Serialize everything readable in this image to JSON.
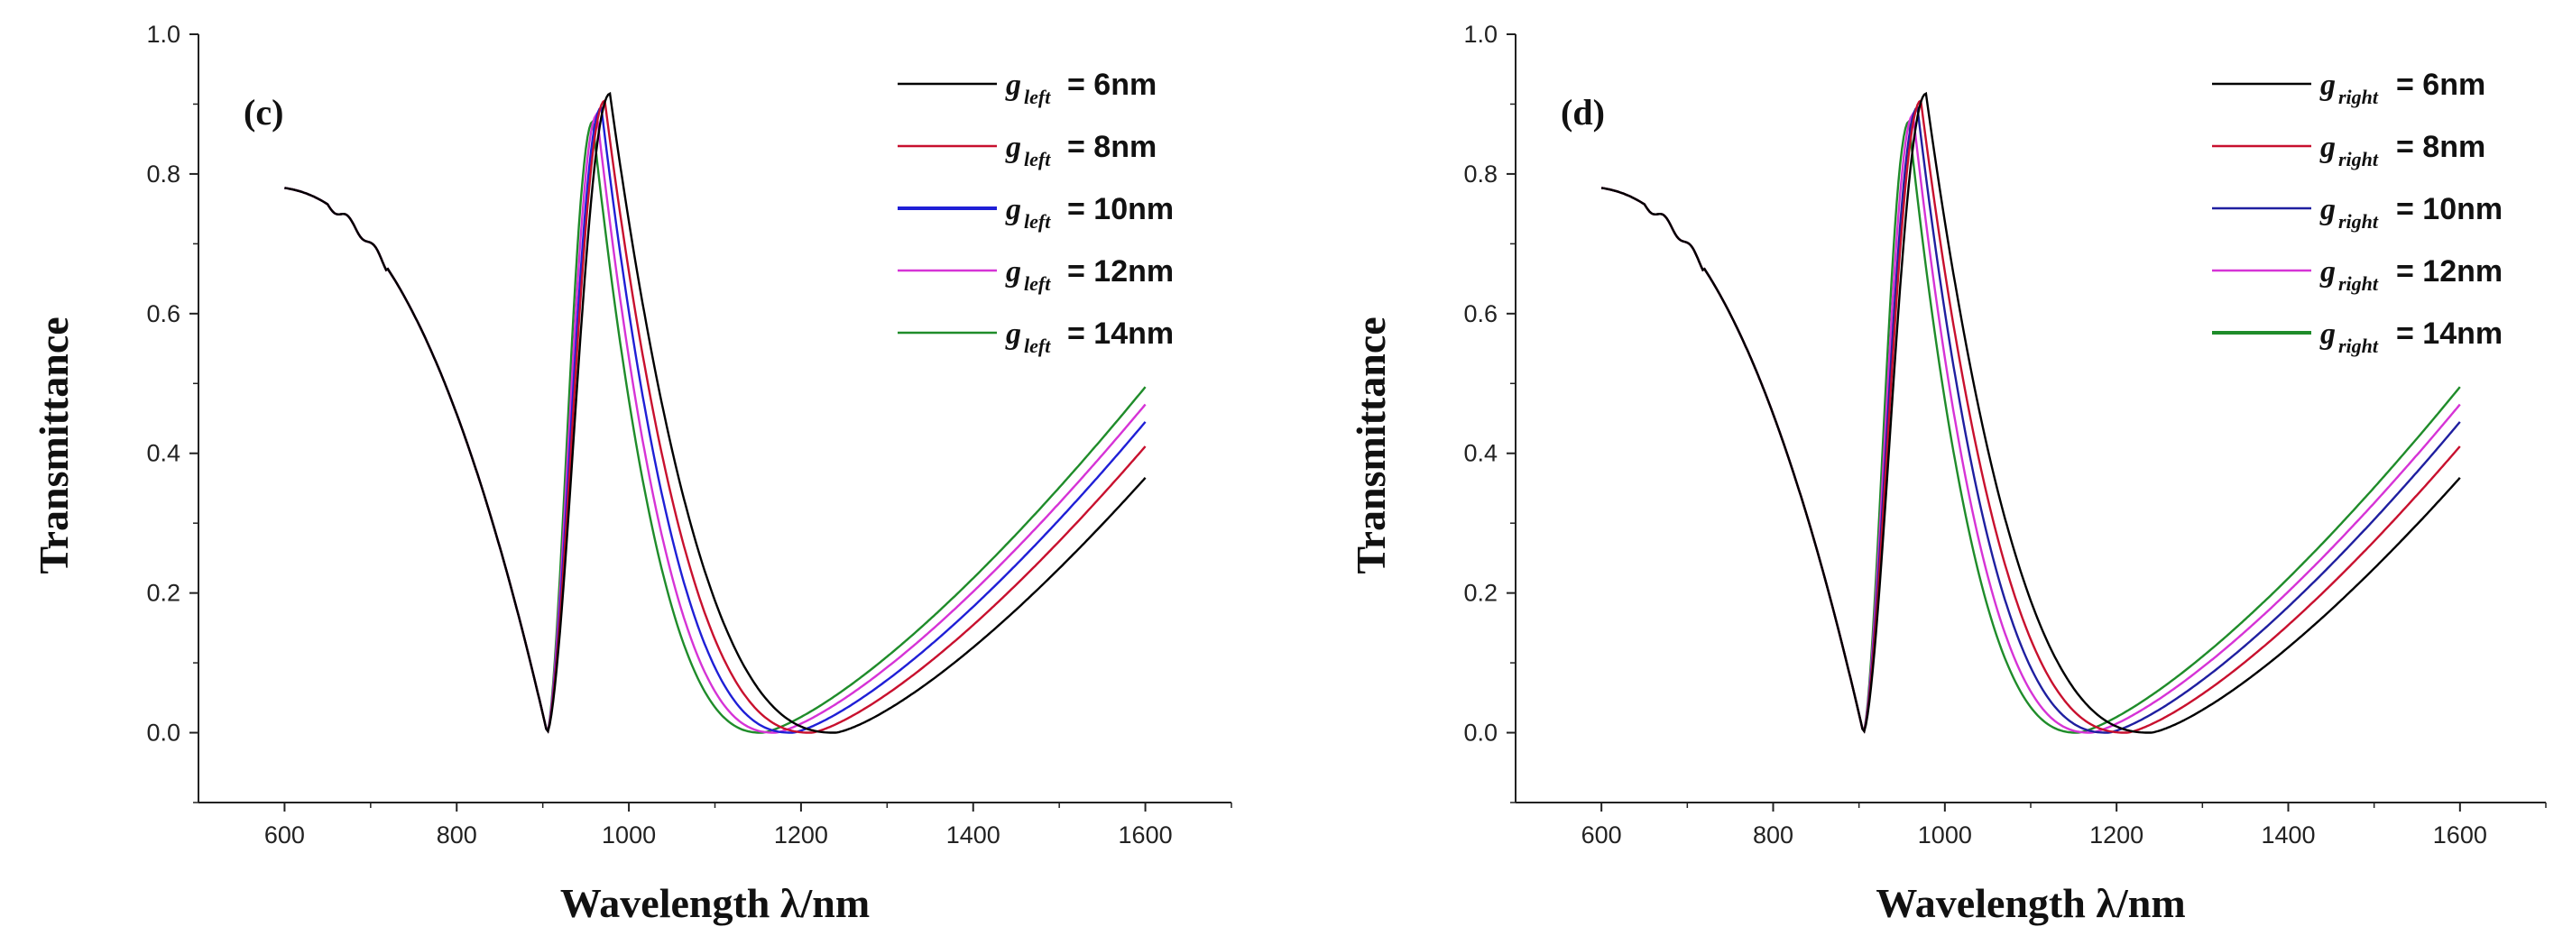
{
  "chart_data": [
    {
      "type": "line",
      "panel_label": "(c)",
      "xlabel": "Wavelength λ/nm",
      "ylabel": "Transmittance",
      "xlim": [
        500,
        1700
      ],
      "ylim": [
        -0.1,
        1.0
      ],
      "xticks": [
        "600",
        "800",
        "1000",
        "1200",
        "1400",
        "1600"
      ],
      "yticks": [
        "0.0",
        "0.2",
        "0.4",
        "0.6",
        "0.8",
        "1.0"
      ],
      "legend_position": "top-right",
      "series": [
        {
          "name": "g_left = 6nm",
          "label_main": "g",
          "label_sub": "left",
          "label_value": "= 6nm",
          "color": "#000000",
          "peak_x": 978,
          "peak_y": 0.915,
          "min_x": 1240,
          "end_y": 0.365
        },
        {
          "name": "g_left = 8nm",
          "label_main": "g",
          "label_sub": "left",
          "label_value": "= 8nm",
          "color": "#c8102e",
          "peak_x": 972,
          "peak_y": 0.905,
          "min_x": 1212,
          "end_y": 0.41
        },
        {
          "name": "g_left = 10nm",
          "label_main": "g",
          "label_sub": "left",
          "label_value": "= 10nm",
          "color": "#1f1fd6",
          "peak_x": 968,
          "peak_y": 0.895,
          "min_x": 1190,
          "end_y": 0.445
        },
        {
          "name": "g_left = 12nm",
          "label_main": "g",
          "label_sub": "left",
          "label_value": "= 12nm",
          "color": "#d633d6",
          "peak_x": 963,
          "peak_y": 0.885,
          "min_x": 1170,
          "end_y": 0.47
        },
        {
          "name": "g_left = 14nm",
          "label_main": "g",
          "label_sub": "left",
          "label_value": "= 14nm",
          "color": "#1f8c2a",
          "peak_x": 958,
          "peak_y": 0.875,
          "min_x": 1155,
          "end_y": 0.495
        }
      ]
    },
    {
      "type": "line",
      "panel_label": "(d)",
      "xlabel": "Wavelength λ/nm",
      "ylabel": "Transmittance",
      "xlim": [
        500,
        1700
      ],
      "ylim": [
        -0.1,
        1.0
      ],
      "xticks": [
        "600",
        "800",
        "1000",
        "1200",
        "1400",
        "1600"
      ],
      "yticks": [
        "0.0",
        "0.2",
        "0.4",
        "0.6",
        "0.8",
        "1.0"
      ],
      "legend_position": "top-right",
      "series": [
        {
          "name": "g_right = 6nm",
          "label_main": "g",
          "label_sub": "right",
          "label_value": "= 6nm",
          "color": "#000000",
          "peak_x": 978,
          "peak_y": 0.915,
          "min_x": 1240,
          "end_y": 0.365
        },
        {
          "name": "g_right = 8nm",
          "label_main": "g",
          "label_sub": "right",
          "label_value": "= 8nm",
          "color": "#c8102e",
          "peak_x": 972,
          "peak_y": 0.905,
          "min_x": 1212,
          "end_y": 0.41
        },
        {
          "name": "g_right = 10nm",
          "label_main": "g",
          "label_sub": "right",
          "label_value": "= 10nm",
          "color": "#1f1fa0",
          "peak_x": 968,
          "peak_y": 0.895,
          "min_x": 1190,
          "end_y": 0.445
        },
        {
          "name": "g_right = 12nm",
          "label_main": "g",
          "label_sub": "right",
          "label_value": "= 12nm",
          "color": "#d633d6",
          "peak_x": 963,
          "peak_y": 0.885,
          "min_x": 1170,
          "end_y": 0.47
        },
        {
          "name": "g_right = 14nm",
          "label_main": "g",
          "label_sub": "right",
          "label_value": "= 14nm",
          "color": "#1f8c2a",
          "peak_x": 958,
          "peak_y": 0.875,
          "min_x": 1155,
          "end_y": 0.495
        }
      ]
    }
  ]
}
